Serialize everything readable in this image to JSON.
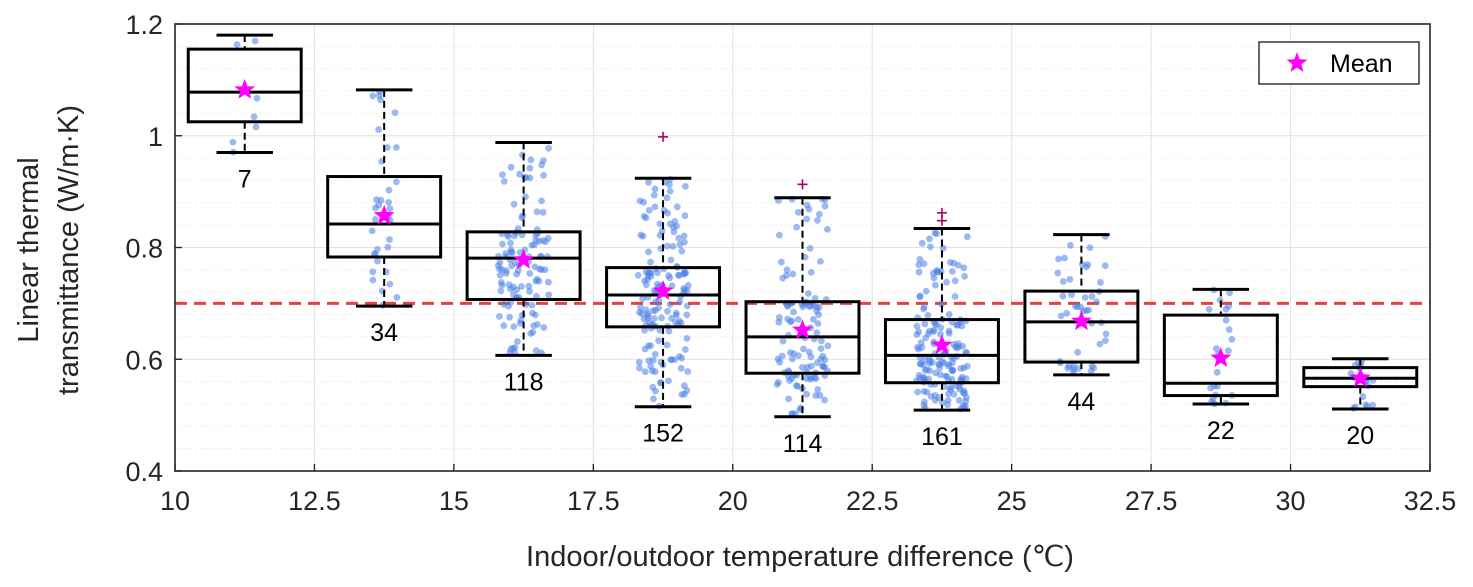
{
  "chart_data": {
    "type": "box",
    "title": "",
    "xlabel": "Indoor/outdoor temperature difference (℃)",
    "ylabel_line1": "Linear thermal",
    "ylabel_line2": "transmittance (W/m·K)",
    "xlim": [
      10,
      32.5
    ],
    "ylim": [
      0.4,
      1.2
    ],
    "xticks": [
      "10",
      "12.5",
      "15",
      "17.5",
      "20",
      "22.5",
      "25",
      "27.5",
      "30",
      "32.5"
    ],
    "yticks": [
      "0.4",
      "0.6",
      "0.8",
      "1",
      "1.2"
    ],
    "xtick_values": [
      10,
      12.5,
      15,
      17.5,
      20,
      22.5,
      25,
      27.5,
      30,
      32.5
    ],
    "ytick_values": [
      0.4,
      0.6,
      0.8,
      1.0,
      1.2
    ],
    "grid": true,
    "reference_line": {
      "y": 0.7,
      "color": "#e8403a",
      "style": "dashed"
    },
    "legend": {
      "position": "top-right",
      "label": "Mean",
      "marker": "star",
      "color": "#ff00ff"
    },
    "colors": {
      "box": "#000000",
      "points": "#4a7fe8",
      "mean": "#ff00ff",
      "outlier": "#b0005a"
    },
    "boxes": [
      {
        "x": 11.25,
        "n": "7",
        "whisker_low": 0.97,
        "q1": 1.025,
        "median": 1.078,
        "q3": 1.155,
        "whisker_high": 1.18,
        "mean": 1.082,
        "outliers": []
      },
      {
        "x": 13.75,
        "n": "34",
        "whisker_low": 0.695,
        "q1": 0.783,
        "median": 0.842,
        "q3": 0.927,
        "whisker_high": 1.082,
        "mean": 0.857,
        "outliers": []
      },
      {
        "x": 16.25,
        "n": "118",
        "whisker_low": 0.607,
        "q1": 0.707,
        "median": 0.781,
        "q3": 0.828,
        "whisker_high": 0.988,
        "mean": 0.778,
        "outliers": []
      },
      {
        "x": 18.75,
        "n": "152",
        "whisker_low": 0.515,
        "q1": 0.658,
        "median": 0.715,
        "q3": 0.764,
        "whisker_high": 0.924,
        "mean": 0.722,
        "outliers": [
          0.998
        ]
      },
      {
        "x": 21.25,
        "n": "114",
        "whisker_low": 0.497,
        "q1": 0.575,
        "median": 0.64,
        "q3": 0.703,
        "whisker_high": 0.889,
        "mean": 0.652,
        "outliers": [
          0.913
        ]
      },
      {
        "x": 23.75,
        "n": "161",
        "whisker_low": 0.509,
        "q1": 0.558,
        "median": 0.607,
        "q3": 0.671,
        "whisker_high": 0.834,
        "mean": 0.625,
        "outliers": [
          0.862,
          0.848
        ]
      },
      {
        "x": 26.25,
        "n": "44",
        "whisker_low": 0.572,
        "q1": 0.595,
        "median": 0.667,
        "q3": 0.722,
        "whisker_high": 0.823,
        "mean": 0.668,
        "outliers": []
      },
      {
        "x": 28.75,
        "n": "22",
        "whisker_low": 0.52,
        "q1": 0.535,
        "median": 0.557,
        "q3": 0.679,
        "whisker_high": 0.725,
        "mean": 0.602,
        "outliers": []
      },
      {
        "x": 31.25,
        "n": "20",
        "whisker_low": 0.511,
        "q1": 0.551,
        "median": 0.566,
        "q3": 0.585,
        "whisker_high": 0.601,
        "mean": 0.566,
        "outliers": []
      }
    ]
  }
}
